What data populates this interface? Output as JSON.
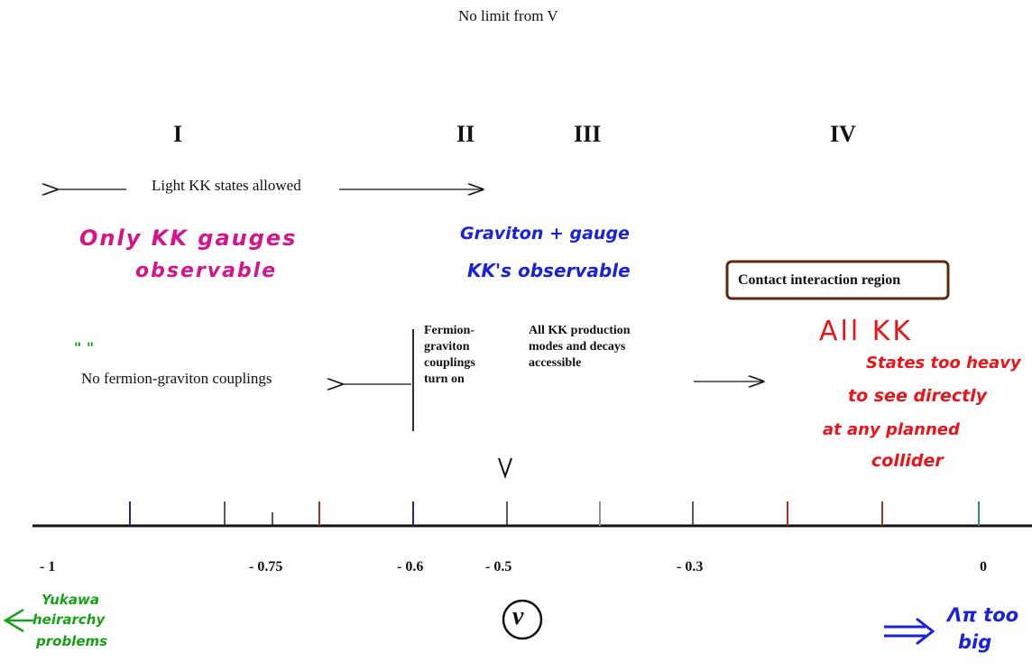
{
  "top_label": "No limit from V",
  "regions": {
    "r1": "I",
    "r2": "II",
    "r3": "III",
    "r4": "IV"
  },
  "light_kk": "Light KK states allowed",
  "hand_pink": {
    "line1": "Only KK gauges",
    "line2": "observable"
  },
  "hand_blue": {
    "line1": "Graviton + gauge",
    "line2": "KK's observable"
  },
  "contact_box": "Contact interaction region",
  "hand_red": {
    "line1": "All KK",
    "line2": "States too heavy",
    "line3": "to see directly",
    "line4": "at any planned",
    "line5": "collider"
  },
  "quote_mark": "\" \"",
  "no_fermion": "No fermion-graviton couplings",
  "fermion_turn_on": {
    "line1": "Fermion-",
    "line2": "graviton",
    "line3": "couplings",
    "line4": "turn on"
  },
  "all_kk_modes": {
    "line1": "All KK production",
    "line2": "modes and decays",
    "line3": "accessible"
  },
  "axis": {
    "symbol": "ν",
    "tick_labels": {
      "t_neg1": "- 1",
      "t_neg075": "- 0.75",
      "t_neg06": "- 0.6",
      "t_neg05": "- 0.5",
      "t_neg03": "- 0.3",
      "t_0": "0"
    }
  },
  "hand_green": {
    "line1": "Yukawa",
    "line2": "heirarchy",
    "line3": "problems"
  },
  "hand_blue_right": {
    "line1": "Λπ too",
    "line2": "big"
  },
  "colors": {
    "pink": "#d4148c",
    "blue": "#1a22d8",
    "red": "#e8141a",
    "green": "#18a018",
    "box_border": "#5a2a10"
  }
}
